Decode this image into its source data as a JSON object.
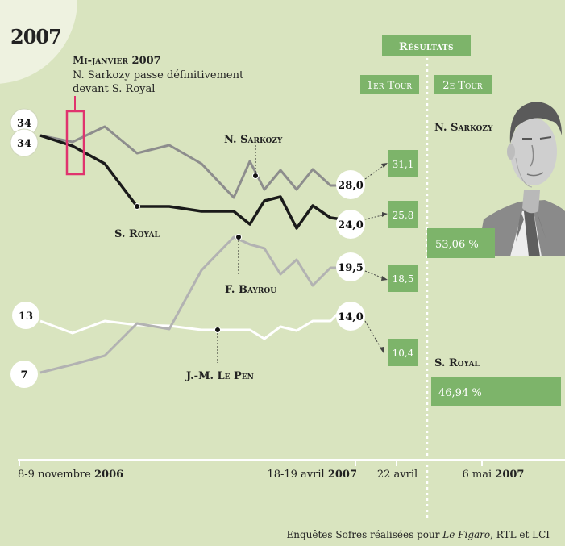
{
  "year": "2007",
  "annotation": {
    "title": "Mi-janvier 2007",
    "line1": "N. Sarkozy passe définitivement",
    "line2": "devant S. Royal"
  },
  "results": {
    "header": "Résultats",
    "round1": "1er Tour",
    "round2": "2e Tour"
  },
  "xaxis": {
    "start_plain": "8-9 novembre ",
    "start_bold": "2006",
    "mid_plain": "18-19 avril ",
    "mid_bold": "2007",
    "r1": "22 avril",
    "r2_plain": "6 mai ",
    "r2_bold": "2007"
  },
  "source": {
    "pre": "Enquêtes Sofres réalisées pour ",
    "italic": "Le Figaro",
    "post": ", RTL et LCI"
  },
  "colors": {
    "background": "#d9e4bf",
    "result_box": "#7db46a",
    "sarkozy": "#8d8d8d",
    "royal": "#1a1a1a",
    "bayrou": "#b2b2b2",
    "lepen": "#ffffff",
    "annotation": "#e0336e"
  },
  "chart_data": {
    "type": "line",
    "title": "2007",
    "x": [
      "8-9 novembre 2006",
      "18-19 avril 2007"
    ],
    "series": [
      {
        "name": "N. Sarkozy",
        "start": "34",
        "end": "28,0",
        "first_round": "31,1",
        "second_round": "53,06 %",
        "start_value": 34,
        "end_value": 28.0,
        "first_round_value": 31.1,
        "second_round_value": 53.06
      },
      {
        "name": "S. Royal",
        "start": "34",
        "end": "24,0",
        "first_round": "25,8",
        "second_round": "46,94 %",
        "start_value": 34,
        "end_value": 24.0,
        "first_round_value": 25.8,
        "second_round_value": 46.94
      },
      {
        "name": "F. Bayrou",
        "start": "7",
        "end": "19,5",
        "first_round": "18,5",
        "start_value": 7,
        "end_value": 19.5,
        "first_round_value": 18.5
      },
      {
        "name": "J.-M. Le Pen",
        "start": "13",
        "end": "14,0",
        "first_round": "10,4",
        "start_value": 13,
        "end_value": 14.0,
        "first_round_value": 10.4
      }
    ],
    "grid": false,
    "legend": "inline labels"
  }
}
